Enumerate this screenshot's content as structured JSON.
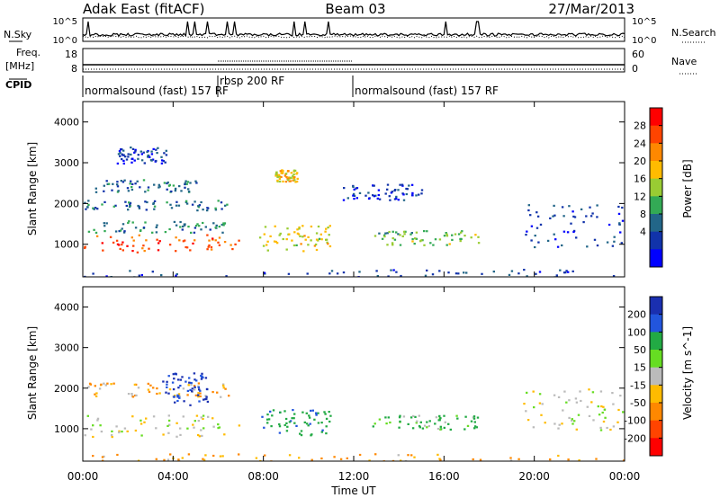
{
  "header": {
    "title_left": "Adak East (fitACF)",
    "title_center": "Beam 03",
    "title_right": "27/Mar/2013"
  },
  "noise_panel": {
    "left_label": "N.Sky",
    "right_label": "N.Search",
    "left_ticks": [
      "10^5",
      "10^0"
    ],
    "right_ticks": [
      "10^5",
      "10^0"
    ]
  },
  "freq_panel": {
    "left_label_1": "Freq.",
    "left_label_2": "[MHz]",
    "right_label": "Nave",
    "left_ticks": [
      "18",
      "8"
    ],
    "right_ticks": [
      "60",
      "0"
    ]
  },
  "cpid": {
    "label": "CPID",
    "segments": [
      {
        "text": "normalsound (fast) 157 RF",
        "start": 0,
        "end": 6
      },
      {
        "text": "rbsp 200 RF",
        "start": 6,
        "end": 12
      },
      {
        "text": "normalsound (fast) 157 RF",
        "start": 12,
        "end": 24
      }
    ]
  },
  "x_axis": {
    "label": "Time UT",
    "ticks": [
      "00:00",
      "04:00",
      "08:00",
      "12:00",
      "16:00",
      "20:00",
      "00:00"
    ]
  },
  "power_panel": {
    "ylabel": "Slant Range [km]",
    "cbar_label": "Power [dB]",
    "cbar_ticks": [
      "28",
      "24",
      "20",
      "16",
      "12",
      "8",
      "4"
    ],
    "cbar_colors": [
      "#ff0000",
      "#ff4400",
      "#ff8800",
      "#ffbb00",
      "#99cc33",
      "#33aa55",
      "#226688",
      "#1133aa",
      "#0000ff"
    ]
  },
  "velocity_panel": {
    "ylabel": "Slant Range [km]",
    "cbar_label": "Velocity [m s^-1]",
    "cbar_ticks": [
      "200",
      "100",
      "50",
      "15",
      "-15",
      "-50",
      "-100",
      "-200"
    ],
    "cbar_colors": [
      "#1a2fb0",
      "#2255dd",
      "#22aa44",
      "#66dd22",
      "#bbbbbb",
      "#ffbb00",
      "#ff8800",
      "#ff4400",
      "#ff0000"
    ]
  },
  "chart_data": [
    {
      "type": "heatmap",
      "title": "Adak East (fitACF) Beam 03 27/Mar/2013",
      "xlabel": "Time UT",
      "ylabel": "Slant Range [km]",
      "xlim": [
        0,
        24
      ],
      "ylim": [
        200,
        4500
      ],
      "x_ticks": [
        0,
        4,
        8,
        12,
        16,
        20,
        24
      ],
      "y_ticks": [
        1000,
        2000,
        3000,
        4000
      ],
      "colorbar": {
        "label": "Power [dB]",
        "range": [
          0,
          32
        ],
        "ticks": [
          4,
          8,
          12,
          16,
          20,
          24,
          28
        ]
      },
      "features": [
        {
          "t": [
            0.0,
            6.9
          ],
          "range": [
            820,
            1250
          ],
          "power": 26
        },
        {
          "t": [
            0.2,
            6.3
          ],
          "range": [
            1300,
            1600
          ],
          "power": 10
        },
        {
          "t": [
            0.0,
            6.5
          ],
          "range": [
            1850,
            2100
          ],
          "power": 9
        },
        {
          "t": [
            0.5,
            5.0
          ],
          "range": [
            2300,
            2600
          ],
          "power": 8
        },
        {
          "t": [
            1.5,
            3.8
          ],
          "range": [
            3000,
            3400
          ],
          "power": 6
        },
        {
          "t": [
            7.8,
            11.0
          ],
          "range": [
            850,
            1500
          ],
          "power": 18
        },
        {
          "t": [
            8.5,
            9.5
          ],
          "range": [
            2550,
            2850
          ],
          "power": 20
        },
        {
          "t": [
            12.8,
            17.5
          ],
          "range": [
            1000,
            1350
          ],
          "power": 14
        },
        {
          "t": [
            11.5,
            15.0
          ],
          "range": [
            2100,
            2500
          ],
          "power": 5
        },
        {
          "t": [
            19.5,
            24.0
          ],
          "range": [
            950,
            2000
          ],
          "power": 6
        },
        {
          "t": [
            0.0,
            24.0
          ],
          "range": [
            200,
            400
          ],
          "power": 6
        }
      ]
    },
    {
      "type": "heatmap",
      "xlabel": "Time UT",
      "ylabel": "Slant Range [km]",
      "xlim": [
        0,
        24
      ],
      "ylim": [
        200,
        4500
      ],
      "x_ticks": [
        0,
        4,
        8,
        12,
        16,
        20,
        24
      ],
      "y_ticks": [
        1000,
        2000,
        3000,
        4000
      ],
      "colorbar": {
        "label": "Velocity [m s^-1]",
        "range": [
          -250,
          250
        ],
        "ticks": [
          200,
          100,
          50,
          15,
          -15,
          -50,
          -100,
          -200
        ]
      },
      "features": [
        {
          "t": [
            0.0,
            6.9
          ],
          "range": [
            820,
            1350
          ],
          "velocity": 0
        },
        {
          "t": [
            0.0,
            6.5
          ],
          "range": [
            1800,
            2150
          ],
          "velocity": -30
        },
        {
          "t": [
            3.5,
            5.5
          ],
          "range": [
            1600,
            2400
          ],
          "velocity": 150
        },
        {
          "t": [
            7.8,
            11.0
          ],
          "range": [
            850,
            1500
          ],
          "velocity": 60
        },
        {
          "t": [
            12.8,
            17.5
          ],
          "range": [
            1000,
            1350
          ],
          "velocity": 40
        },
        {
          "t": [
            19.5,
            24.0
          ],
          "range": [
            950,
            2000
          ],
          "velocity": 0
        },
        {
          "t": [
            0.0,
            24.0
          ],
          "range": [
            200,
            400
          ],
          "velocity": -40
        }
      ]
    }
  ]
}
